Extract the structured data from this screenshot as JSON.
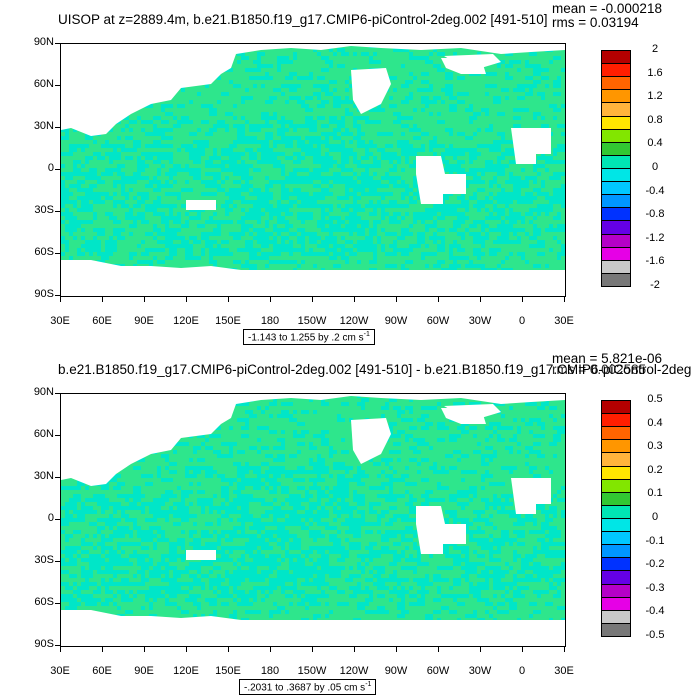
{
  "chart_data": [
    {
      "type": "heatmap",
      "title": "UISOP at z=2889.4m, b.e21.B1850.f19_g17.CMIP6-piControl-2deg.002 [491-510]",
      "stats": {
        "mean": "mean = -0.000218",
        "rms": "rms = 0.03194"
      },
      "yticks": [
        "90N",
        "60N",
        "30N",
        "0",
        "30S",
        "60S",
        "90S"
      ],
      "xticks": [
        "30E",
        "60E",
        "90E",
        "120E",
        "150E",
        "180",
        "150W",
        "120W",
        "90W",
        "60W",
        "30W",
        "0",
        "30E"
      ],
      "range_text": "-1.143 to 1.255 by .2 cm s",
      "range_exp": "-1",
      "colorbar": {
        "levels": [
          "2",
          "1.6",
          "1.2",
          "0.8",
          "0.4",
          "0",
          "-0.4",
          "-0.8",
          "-1.2",
          "-1.6",
          "-2"
        ],
        "colors": [
          "#b40000",
          "#ff1e00",
          "#ff6400",
          "#ff9600",
          "#ffb43c",
          "#ffe600",
          "#82e600",
          "#32c832",
          "#00e6b4",
          "#00e6e6",
          "#00c8ff",
          "#0096ff",
          "#0032ff",
          "#6400e6",
          "#b400c8",
          "#e600e6",
          "#c8c8c8",
          "#787878"
        ]
      }
    },
    {
      "type": "heatmap",
      "title": "b.e21.B1850.f19_g17.CMIP6-piControl-2deg.002 [491-510] - b.e21.B1850.f19_g17.CMIP6-piControl-2deg",
      "stats": {
        "mean": "mean = 5.821e-06",
        "rms": "rms = 0.002585"
      },
      "yticks": [
        "90N",
        "60N",
        "30N",
        "0",
        "30S",
        "60S",
        "90S"
      ],
      "xticks": [
        "30E",
        "60E",
        "90E",
        "120E",
        "150E",
        "180",
        "150W",
        "120W",
        "90W",
        "60W",
        "30W",
        "0",
        "30E"
      ],
      "range_text": "-.2031 to .3687 by .05 cm s",
      "range_exp": "-1",
      "colorbar": {
        "levels": [
          "0.5",
          "0.4",
          "0.3",
          "0.2",
          "0.1",
          "0",
          "-0.1",
          "-0.2",
          "-0.3",
          "-0.4",
          "-0.5"
        ],
        "colors": [
          "#b40000",
          "#ff1e00",
          "#ff6400",
          "#ff9600",
          "#ffb43c",
          "#ffe600",
          "#82e600",
          "#32c832",
          "#00e6b4",
          "#00e6e6",
          "#00c8ff",
          "#0096ff",
          "#0032ff",
          "#6400e6",
          "#b400c8",
          "#e600e6",
          "#c8c8c8",
          "#787878"
        ]
      }
    }
  ],
  "map_colors": {
    "ocean_base": "#2ee68c",
    "ocean_alt": "#00e6c8",
    "land": "#ffffff"
  }
}
